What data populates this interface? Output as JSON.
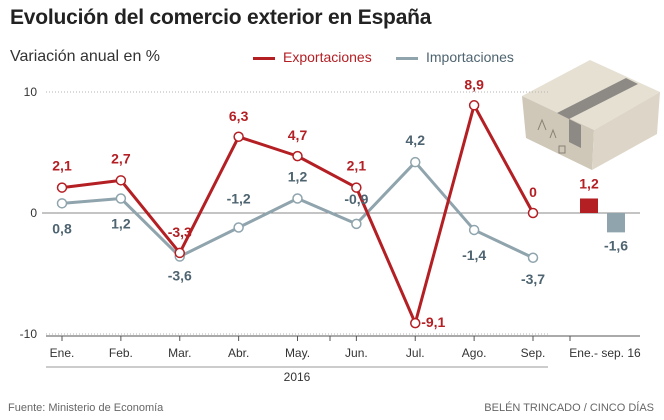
{
  "header": {
    "title": "Evolución del comercio exterior en España",
    "subtitle": "Variación anual en %"
  },
  "colors": {
    "exports": "#b41f24",
    "imports": "#8fa4ad",
    "grid": "#b3b3b3",
    "zero": "#888888",
    "text": "#333333",
    "imports_label": "#4e6470"
  },
  "chart_data": {
    "type": "line",
    "title": "Evolución del comercio exterior en España",
    "ylabel": "Variación anual en %",
    "xlabel": "2016",
    "categories": [
      "Ene.",
      "Feb.",
      "Mar.",
      "Abr.",
      "May.",
      "Jun.",
      "Jul.",
      "Ago.",
      "Sep."
    ],
    "yticks": [
      10,
      0,
      -10
    ],
    "ylim": [
      -10,
      10
    ],
    "legend_position": "top",
    "series": [
      {
        "name": "Exportaciones",
        "key": "exports",
        "values": [
          2.1,
          2.7,
          -3.3,
          6.3,
          4.7,
          2.1,
          -9.1,
          8.9,
          0
        ],
        "labels": [
          "2,1",
          "2,7",
          "-3,3",
          "6,3",
          "4,7",
          "2,1",
          "-9,1",
          "8,9",
          "0"
        ]
      },
      {
        "name": "Importaciones",
        "key": "imports",
        "values": [
          0.8,
          1.2,
          -3.6,
          -1.2,
          1.2,
          -0.9,
          4.2,
          -1.4,
          -3.7
        ],
        "labels": [
          "0,8",
          "1,2",
          "-3,6",
          "-1,2",
          "1,2",
          "-0,9",
          "4,2",
          "-1,4",
          "-3,7"
        ]
      }
    ],
    "summary": {
      "label": "Ene.- sep. 16",
      "bars": [
        {
          "series": "exports",
          "value": 1.2,
          "label": "1,2"
        },
        {
          "series": "imports",
          "value": -1.6,
          "label": "-1,6"
        }
      ]
    }
  },
  "footer": {
    "source": "Fuente: Ministerio de Economía",
    "credit": "BELÉN TRINCADO / CINCO DÍAS"
  }
}
